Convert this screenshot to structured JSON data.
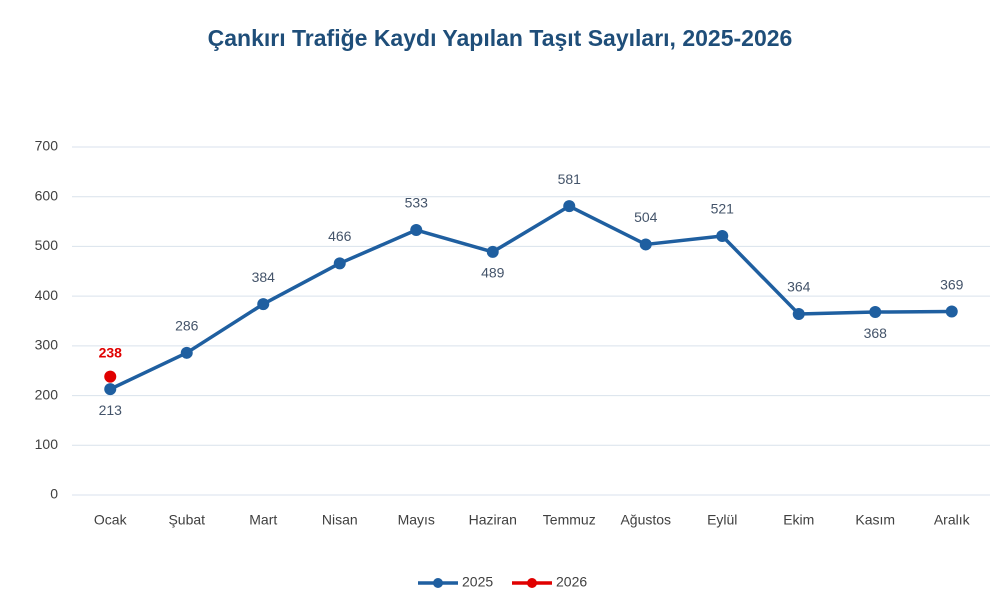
{
  "chart_data": {
    "type": "line",
    "title": "Çankırı Trafiğe Kaydı Yapılan Taşıt Sayıları, 2025-2026",
    "categories": [
      "Ocak",
      "Şubat",
      "Mart",
      "Nisan",
      "Mayıs",
      "Haziran",
      "Temmuz",
      "Ağustos",
      "Eylül",
      "Ekim",
      "Kasım",
      "Aralık"
    ],
    "series": [
      {
        "name": "2025",
        "color": "#1f5fa0",
        "values": [
          213,
          286,
          384,
          466,
          533,
          489,
          581,
          504,
          521,
          364,
          368,
          369
        ]
      },
      {
        "name": "2026",
        "color": "#e00000",
        "values": [
          238,
          null,
          null,
          null,
          null,
          null,
          null,
          null,
          null,
          null,
          null,
          null
        ]
      }
    ],
    "ylim": [
      0,
      700
    ],
    "yticks": [
      0,
      100,
      200,
      300,
      400,
      500,
      600,
      700
    ],
    "grid": true,
    "legend": "bottom"
  }
}
